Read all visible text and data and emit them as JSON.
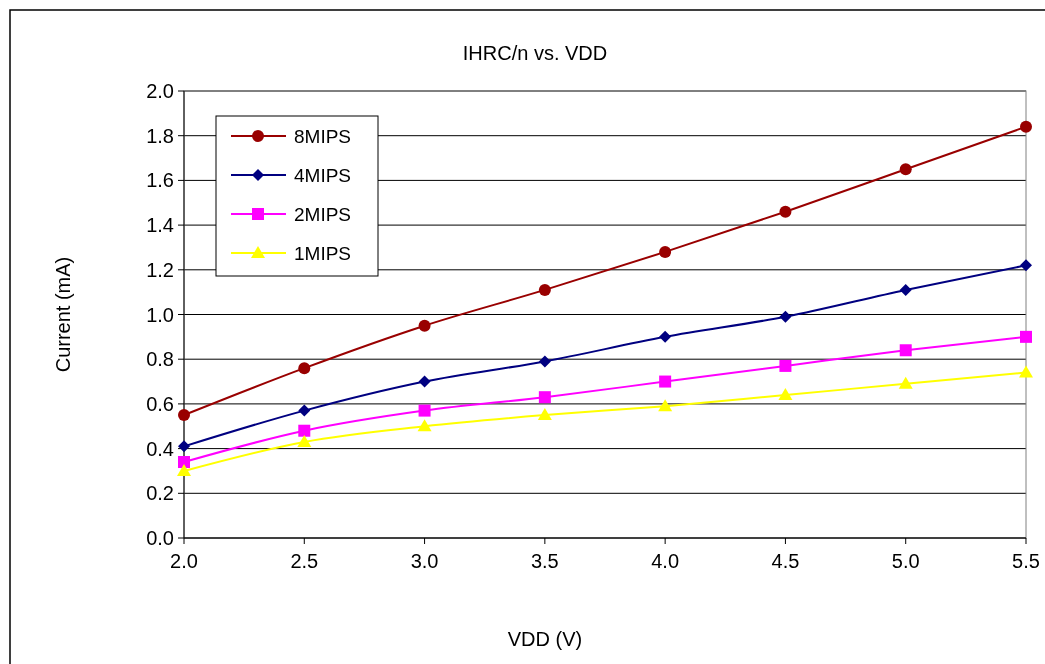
{
  "chart_data": {
    "type": "line",
    "title": "IHRC/n vs. VDD",
    "xlabel": "VDD (V)",
    "ylabel": "Current (mA)",
    "x": [
      2.0,
      2.5,
      3.0,
      3.5,
      4.0,
      4.5,
      5.0,
      5.5
    ],
    "xlim": [
      2.0,
      5.5
    ],
    "xticks": [
      {
        "value": 2,
        "label": "2.0"
      },
      {
        "value": 2.5,
        "label": "2.5"
      },
      {
        "value": 3,
        "label": "3.0"
      },
      {
        "value": 3.5,
        "label": "3.5"
      },
      {
        "value": 4,
        "label": "4.0"
      },
      {
        "value": 4.5,
        "label": "4.5"
      },
      {
        "value": 5,
        "label": "5.0"
      },
      {
        "value": 5.5,
        "label": "5.5"
      }
    ],
    "ylim": [
      0,
      2.0
    ],
    "yticks": [
      {
        "value": 0,
        "label": "0.0"
      },
      {
        "value": 0.2,
        "label": "0.2"
      },
      {
        "value": 0.4,
        "label": "0.4"
      },
      {
        "value": 0.6,
        "label": "0.6"
      },
      {
        "value": 0.8,
        "label": "0.8"
      },
      {
        "value": 1,
        "label": "1.0"
      },
      {
        "value": 1.2,
        "label": "1.2"
      },
      {
        "value": 1.4,
        "label": "1.4"
      },
      {
        "value": 1.6,
        "label": "1.6"
      },
      {
        "value": 1.8,
        "label": "1.8"
      },
      {
        "value": 2,
        "label": "2.0"
      }
    ],
    "grid": "y",
    "legend": "top left",
    "line_style": "solid",
    "series": [
      {
        "name": "8MIPS",
        "color": "#990000",
        "marker": "circle",
        "values": [
          0.55,
          0.76,
          0.95,
          1.11,
          1.28,
          1.46,
          1.65,
          1.84
        ]
      },
      {
        "name": "4MIPS",
        "color": "#000080",
        "marker": "diamond",
        "values": [
          0.41,
          0.57,
          0.7,
          0.79,
          0.9,
          0.99,
          1.11,
          1.22
        ]
      },
      {
        "name": "2MIPS",
        "color": "#ff00ff",
        "marker": "square",
        "values": [
          0.34,
          0.48,
          0.57,
          0.63,
          0.7,
          0.77,
          0.84,
          0.9
        ]
      },
      {
        "name": "1MIPS",
        "color": "#ffff00",
        "marker": "triangle",
        "values": [
          0.3,
          0.43,
          0.5,
          0.55,
          0.59,
          0.64,
          0.69,
          0.74
        ]
      }
    ]
  }
}
